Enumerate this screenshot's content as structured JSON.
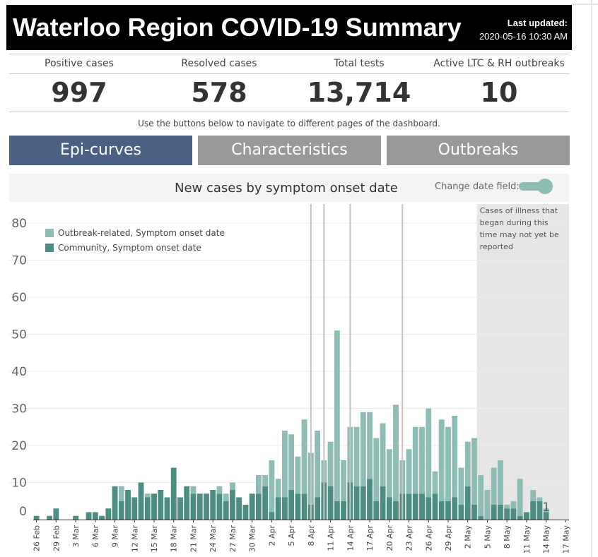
{
  "header": {
    "title": "Waterloo Region COVID-19 Summary",
    "updated_label": "Last updated:",
    "updated_value": "2020-05-16 10:30 AM"
  },
  "stats": [
    {
      "label": "Positive cases",
      "value": "997"
    },
    {
      "label": "Resolved cases",
      "value": "578"
    },
    {
      "label": "Total tests",
      "value": "13,714"
    },
    {
      "label": "Active LTC & RH outbreaks",
      "value": "10"
    }
  ],
  "nav": {
    "hint": "Use the buttons below to navigate to different pages of the dashboard.",
    "buttons": [
      {
        "label": "Epi-curves",
        "active": true
      },
      {
        "label": "Characteristics",
        "active": false
      },
      {
        "label": "Outbreaks",
        "active": false
      }
    ]
  },
  "chart_header": {
    "title": "New cases by symptom onset date",
    "toggle_label": "Change date field:"
  },
  "colors": {
    "outbreak": "#8fbcb4",
    "community": "#4e8d82",
    "shaded": "#e6e6e6",
    "active_button": "#4a6183",
    "inactive_button": "#999999"
  },
  "chart_data": {
    "type": "bar",
    "stacked": true,
    "start_date": "2020-02-26",
    "end_date": "2020-05-17",
    "x_tick_labels": [
      "26 Feb",
      "29 Feb",
      "3 Mar",
      "6 Mar",
      "9 Mar",
      "12 Mar",
      "15 Mar",
      "18 Mar",
      "21 Mar",
      "24 Mar",
      "27 Mar",
      "30 Mar",
      "2 Apr",
      "5 Apr",
      "8 Apr",
      "11 Apr",
      "14 Apr",
      "17 Apr",
      "20 Apr",
      "23 Apr",
      "26 Apr",
      "29 Apr",
      "2 May",
      "5 May",
      "8 May",
      "11 May",
      "14 May",
      "17 May"
    ],
    "y_ticks": [
      0,
      10,
      20,
      30,
      40,
      50,
      60,
      70,
      80
    ],
    "ylim": [
      0,
      85
    ],
    "grid": true,
    "legend_position": "top-left",
    "series": [
      {
        "name": "Community, Symptom onset date",
        "values": [
          1,
          0,
          1,
          3,
          0,
          0,
          1,
          0,
          2,
          2,
          1,
          3,
          9,
          5,
          8,
          6,
          10,
          6,
          7,
          8,
          6,
          14,
          6,
          9,
          7,
          7,
          7,
          8,
          7,
          5,
          8,
          6,
          4,
          7,
          7,
          9,
          2,
          6,
          6,
          8,
          7,
          7,
          4,
          6,
          10,
          9,
          5,
          5,
          10,
          9,
          9,
          11,
          5,
          9,
          6,
          5,
          7,
          7,
          7,
          7,
          6,
          7,
          5,
          5,
          6,
          4,
          9,
          4,
          1,
          0,
          4,
          4,
          3,
          3,
          1,
          2,
          5,
          5,
          2,
          0,
          0
        ]
      },
      {
        "name": "Outbreak-related, Symptom onset date",
        "values": [
          0,
          0,
          0,
          0,
          0,
          0,
          0,
          0,
          0,
          0,
          0,
          0,
          0,
          4,
          0,
          0,
          0,
          1,
          0,
          0,
          0,
          0,
          0,
          0,
          2,
          0,
          0,
          0,
          2,
          2,
          2,
          0,
          0,
          0,
          5,
          3,
          14,
          5,
          18,
          15,
          10,
          20,
          14,
          18,
          6,
          12,
          46,
          11,
          15,
          16,
          20,
          18,
          17,
          17,
          13,
          26,
          9,
          12,
          18,
          18,
          24,
          6,
          22,
          20,
          22,
          10,
          12,
          18,
          11,
          8,
          10,
          12,
          1,
          2,
          10,
          0,
          3,
          1,
          1,
          0,
          0
        ]
      }
    ],
    "data_labels": [
      {
        "date": "2020-05-14",
        "text": "1"
      }
    ],
    "reference_lines": [
      "2020-04-08",
      "2020-04-10",
      "2020-04-14",
      "2020-04-22"
    ],
    "shaded_region": {
      "start": "2020-05-04",
      "end": "2020-05-17",
      "text": [
        "Cases of illness that",
        "began during this",
        "time may not yet be",
        "reported"
      ]
    }
  }
}
